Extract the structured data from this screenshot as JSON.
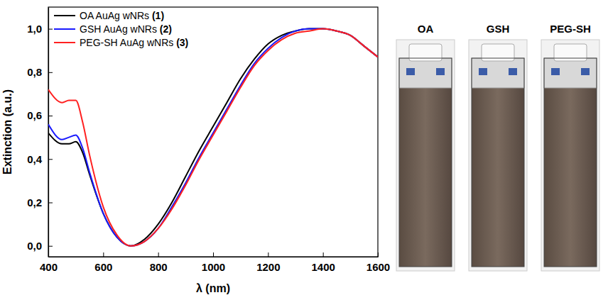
{
  "chart_data": {
    "type": "line",
    "x_label": "λ (nm)",
    "y_label": "Extinction (a.u.)",
    "x": [
      400,
      450,
      475,
      500,
      525,
      550,
      600,
      650,
      700,
      750,
      800,
      850,
      900,
      950,
      1000,
      1050,
      1100,
      1150,
      1200,
      1250,
      1300,
      1350,
      1400,
      1450,
      1500,
      1550,
      1600
    ],
    "series": [
      {
        "name": "OA AuAg wNRs (1)",
        "color": "#000000",
        "values": [
          0.52,
          0.47,
          0.47,
          0.48,
          0.43,
          0.33,
          0.15,
          0.04,
          0.0,
          0.03,
          0.1,
          0.2,
          0.32,
          0.44,
          0.55,
          0.66,
          0.77,
          0.86,
          0.93,
          0.97,
          0.99,
          1.0,
          1.0,
          0.99,
          0.97,
          0.92,
          0.87
        ]
      },
      {
        "name": "GSH AuAg wNRs (2)",
        "color": "#1a1aff",
        "values": [
          0.56,
          0.49,
          0.5,
          0.51,
          0.45,
          0.34,
          0.15,
          0.04,
          0.0,
          0.02,
          0.08,
          0.18,
          0.29,
          0.41,
          0.52,
          0.63,
          0.74,
          0.84,
          0.91,
          0.96,
          0.99,
          1.0,
          1.0,
          0.99,
          0.97,
          0.92,
          0.87
        ]
      },
      {
        "name": "PEG-SH AuAg wNRs (3)",
        "color": "#ff2020",
        "values": [
          0.72,
          0.66,
          0.67,
          0.67,
          0.57,
          0.42,
          0.18,
          0.05,
          0.0,
          0.02,
          0.08,
          0.17,
          0.28,
          0.4,
          0.51,
          0.62,
          0.73,
          0.83,
          0.9,
          0.95,
          0.98,
          0.99,
          1.0,
          0.99,
          0.97,
          0.92,
          0.87
        ]
      }
    ],
    "xlim": [
      400,
      1600
    ],
    "xticks": [
      400,
      600,
      800,
      1000,
      1200,
      1400,
      1600
    ],
    "ylim": [
      -0.05,
      1.1
    ],
    "yticks": [
      {
        "value": 0,
        "label": "0,0"
      },
      {
        "value": 0.2,
        "label": "0,2"
      },
      {
        "value": 0.4,
        "label": "0,4"
      },
      {
        "value": 0.6,
        "label": "0,6"
      },
      {
        "value": 0.8,
        "label": "0,8"
      },
      {
        "value": 1.0,
        "label": "1,0"
      }
    ],
    "legend": "upper left",
    "grid": false
  },
  "photos": {
    "labels": [
      "OA",
      "GSH",
      "PEG-SH"
    ]
  }
}
